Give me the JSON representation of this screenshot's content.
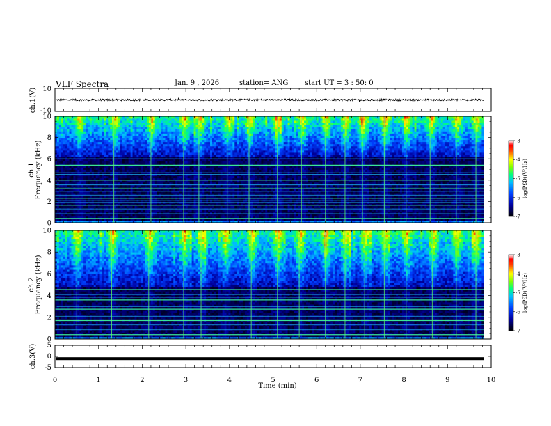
{
  "header": {
    "title": "VLF Spectra",
    "date": "Jan. 9 , 2026",
    "station": "station= ANG",
    "start": "start  UT =  3 : 50: 0"
  },
  "chart_data": [
    {
      "id": "ch1-waveform",
      "type": "line",
      "ylabel": "ch.1(V)",
      "ylim": [
        -10,
        10
      ],
      "yticklabels": [
        "10",
        "-10"
      ],
      "xlim": [
        0,
        10
      ],
      "data_end_min": 9.83,
      "description_level": "noisy waveform near 0 V with amplitude about 1 V"
    },
    {
      "id": "ch1-spectrogram",
      "type": "heatmap",
      "ylabel": "ch.1\nFrequency (kHz)",
      "ylim": [
        0,
        10
      ],
      "yticks": [
        0,
        2,
        4,
        6,
        8,
        10
      ],
      "xlim": [
        0,
        10
      ],
      "data_end_min": 9.83,
      "colorbar": {
        "label": "log(PSD)(V²/Hz)",
        "ticks": [
          "-3",
          "-4",
          "-5",
          "-6",
          "-7"
        ],
        "range": [
          -7,
          -3
        ]
      },
      "narrowband_lines_khz": [
        0.4,
        0.85,
        1.3,
        1.65,
        1.9,
        2.1,
        2.3,
        2.6,
        2.95,
        3.2,
        3.35,
        3.55,
        4.0,
        4.55,
        4.7,
        5.4,
        6.0
      ],
      "sferic_times_min": [
        0.55,
        1.35,
        2.2,
        2.95,
        3.3,
        3.95,
        4.45,
        5.1,
        5.65,
        6.2,
        6.65,
        7.05,
        7.55,
        8.05,
        8.6,
        9.2,
        9.65
      ]
    },
    {
      "id": "ch2-spectrogram",
      "type": "heatmap",
      "ylabel": "ch.2\nFrequency (kHz)",
      "ylim": [
        0,
        10
      ],
      "yticks": [
        0,
        2,
        4,
        6,
        8,
        10
      ],
      "xlim": [
        0,
        10
      ],
      "data_end_min": 9.83,
      "colorbar": {
        "label": "log(PSD)(V²/Hz)",
        "ticks": [
          "-3",
          "-4",
          "-5",
          "-6",
          "-7"
        ],
        "range": [
          -7,
          -3
        ]
      },
      "narrowband_lines_khz": [
        0.4,
        0.85,
        1.3,
        1.7,
        2.1,
        2.4,
        2.75,
        3.0,
        3.3,
        3.6,
        3.85,
        4.1,
        4.55
      ],
      "sferic_times_min": [
        0.5,
        1.3,
        2.15,
        2.95,
        3.35,
        3.9,
        4.5,
        5.1,
        5.6,
        6.2,
        6.65,
        7.1,
        7.55,
        8.05,
        8.65,
        9.2,
        9.65
      ]
    },
    {
      "id": "ch3-waveform",
      "type": "line",
      "ylabel": "ch.3(V)",
      "ylim": [
        -5,
        5
      ],
      "yticklabels": [
        "5",
        "0",
        "-5"
      ],
      "xlim": [
        0,
        10
      ],
      "data_end_min": 9.83,
      "level_v": -1.0
    }
  ],
  "xaxis": {
    "label": "Time  (min)",
    "ticks": [
      0,
      1,
      2,
      3,
      4,
      5,
      6,
      7,
      8,
      9,
      10
    ]
  }
}
